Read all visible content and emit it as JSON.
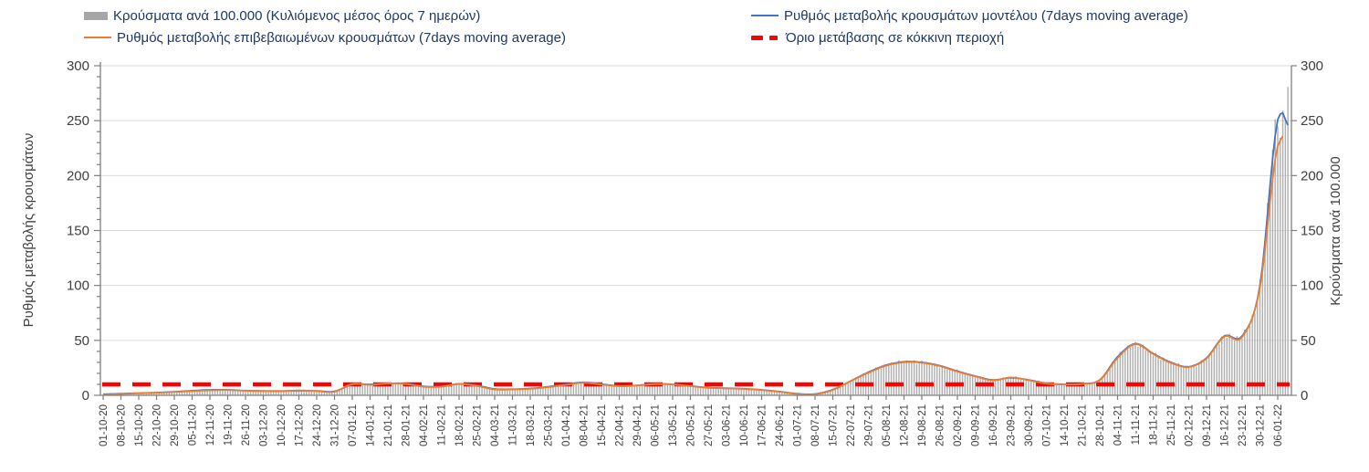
{
  "legend": {
    "text_color": "#1f3864",
    "items": [
      {
        "id": "cases-per-100k",
        "label": "Κρούσματα ανά 100.000 (Κυλιόμενος μέσος όρος 7 ημερών)",
        "swatch": "bar",
        "color": "#a6a6a6"
      },
      {
        "id": "model-rate",
        "label": "Ρυθμός μεταβολής κρουσμάτων μοντέλου (7days moving average)",
        "swatch": "line",
        "color": "#4472c4"
      },
      {
        "id": "confirmed-rate",
        "label": "Ρυθμός μεταβολής επιβεβαιωμένων κρουσμάτων (7days moving average)",
        "swatch": "line",
        "color": "#ed7d31"
      },
      {
        "id": "red-zone-threshold",
        "label": "Όριο μετάβασης σε κόκκινη περιοχή",
        "swatch": "dash",
        "color": "#ff0000"
      }
    ]
  },
  "axes": {
    "left_title": "Ρυθμός μεταβολής κρουσμάτων",
    "right_title": "Κρούσματα ανά 100.000",
    "y_ticks": [
      0,
      50,
      100,
      150,
      200,
      250,
      300
    ],
    "ylim": [
      0,
      300
    ],
    "tick_color": "#404040",
    "axis_color": "#808080",
    "grid_color": "#d9d9d9"
  },
  "chart_data": {
    "type": "combo-bar-line",
    "title": "",
    "xlabel": "",
    "ylabel_left": "Ρυθμός μεταβολής κρουσμάτων",
    "ylabel_right": "Κρούσματα ανά 100.000",
    "ylim": [
      0,
      300
    ],
    "grid": "horizontal every 50",
    "legend_position": "top",
    "threshold_red_zone": 10,
    "x": [
      "01-10-20",
      "08-10-20",
      "15-10-20",
      "22-10-20",
      "29-10-20",
      "05-11-20",
      "12-11-20",
      "19-11-20",
      "26-11-20",
      "03-12-20",
      "10-12-20",
      "17-12-20",
      "24-12-20",
      "31-12-20",
      "07-01-21",
      "14-01-21",
      "21-01-21",
      "28-01-21",
      "04-02-21",
      "11-02-21",
      "18-02-21",
      "25-02-21",
      "04-03-21",
      "11-03-21",
      "18-03-21",
      "25-03-21",
      "01-04-21",
      "08-04-21",
      "15-04-21",
      "22-04-21",
      "29-04-21",
      "06-05-21",
      "13-05-21",
      "20-05-21",
      "27-05-21",
      "03-06-21",
      "10-06-21",
      "17-06-21",
      "24-06-21",
      "01-07-21",
      "08-07-21",
      "15-07-21",
      "22-07-21",
      "29-07-21",
      "05-08-21",
      "12-08-21",
      "19-08-21",
      "26-08-21",
      "02-09-21",
      "09-09-21",
      "16-09-21",
      "23-09-21",
      "30-09-21",
      "07-10-21",
      "14-10-21",
      "21-10-21",
      "28-10-21",
      "04-11-21",
      "11-11-21",
      "18-11-21",
      "25-11-21",
      "02-12-21",
      "09-12-21",
      "16-12-21",
      "23-12-21",
      "30-12-21",
      "06-01-22"
    ],
    "x_note": "daily bars/lines, weekly tick labels; values below sampled at each weekly tick; tail_daily_values are the ~4 days drawn past the last tick",
    "series": [
      {
        "name": "Κρούσματα ανά 100.000 (Κυλιόμενος μέσος όρος 7 ημερών)",
        "type": "bar",
        "axis": "right",
        "color": "#aeaeae",
        "weekly_values": [
          0.5,
          0.8,
          1.2,
          2,
          3.5,
          4.5,
          5,
          5,
          4.5,
          4,
          4,
          4.5,
          4,
          3.5,
          10.5,
          10,
          11,
          10.5,
          8,
          8,
          10.5,
          9,
          5.5,
          5.5,
          6,
          7.5,
          9.5,
          11.5,
          10,
          8.5,
          9,
          10.5,
          10,
          8.5,
          7,
          6.5,
          6,
          5,
          3.5,
          1.5,
          1.2,
          5,
          13,
          21,
          27.5,
          30.5,
          30,
          27,
          22,
          17.5,
          14,
          16.5,
          14,
          11,
          10,
          10.5,
          14,
          35,
          47,
          38,
          30,
          26,
          34,
          54,
          54,
          100,
          258
        ],
        "tail_daily_values": [
          230,
          252,
          265,
          273
        ]
      },
      {
        "name": "Ρυθμός μεταβολής επιβεβαιωμένων κρουσμάτων (7days moving average)",
        "type": "line",
        "axis": "left",
        "color": "#ed7d31",
        "weekly_values": [
          0.5,
          1.2,
          1.8,
          2.3,
          3,
          3.8,
          4.5,
          4.8,
          4.2,
          3.8,
          3.8,
          4.5,
          3.8,
          3.2,
          10.3,
          9.5,
          10.8,
          10.3,
          7.8,
          7.8,
          10.2,
          8.5,
          5.3,
          5.4,
          5.9,
          7.4,
          9.4,
          11.4,
          9.8,
          8.3,
          8.9,
          10.2,
          9.8,
          8.3,
          6.8,
          6.3,
          5.8,
          4.8,
          3.2,
          1.2,
          1,
          4.8,
          12.8,
          20.5,
          27,
          30,
          29.6,
          26.6,
          21.6,
          17.2,
          13.6,
          16.3,
          13.7,
          10.7,
          9.8,
          10.3,
          13.7,
          34,
          46.5,
          37.5,
          29.5,
          25.7,
          33.5,
          53.5,
          53,
          98,
          227
        ],
        "tail_daily_values": [
          232,
          236,
          null,
          null
        ]
      },
      {
        "name": "Ρυθμός μεταβολής κρουσμάτων μοντέλου (7days moving average)",
        "type": "line",
        "axis": "left",
        "color": "#4472c4",
        "weekly_values": [
          1,
          1.5,
          2,
          2.5,
          3.2,
          4.2,
          5,
          5,
          4.3,
          4,
          3.9,
          4.2,
          4,
          3.6,
          9.8,
          10,
          10.8,
          10.8,
          8.2,
          8,
          10.4,
          9,
          5.8,
          5.6,
          6.2,
          7.8,
          10,
          11.8,
          10.2,
          8.5,
          9,
          10.4,
          10,
          8.5,
          7,
          6.5,
          6,
          5,
          3.4,
          1.5,
          1.2,
          5.2,
          13,
          21,
          27.5,
          30.5,
          30,
          27,
          22,
          17.5,
          14,
          16,
          14,
          11,
          10,
          10.5,
          14,
          35,
          47,
          38,
          30,
          26,
          34,
          54,
          54,
          100,
          251
        ],
        "tail_daily_values": [
          256,
          257,
          251,
          246
        ]
      }
    ]
  }
}
